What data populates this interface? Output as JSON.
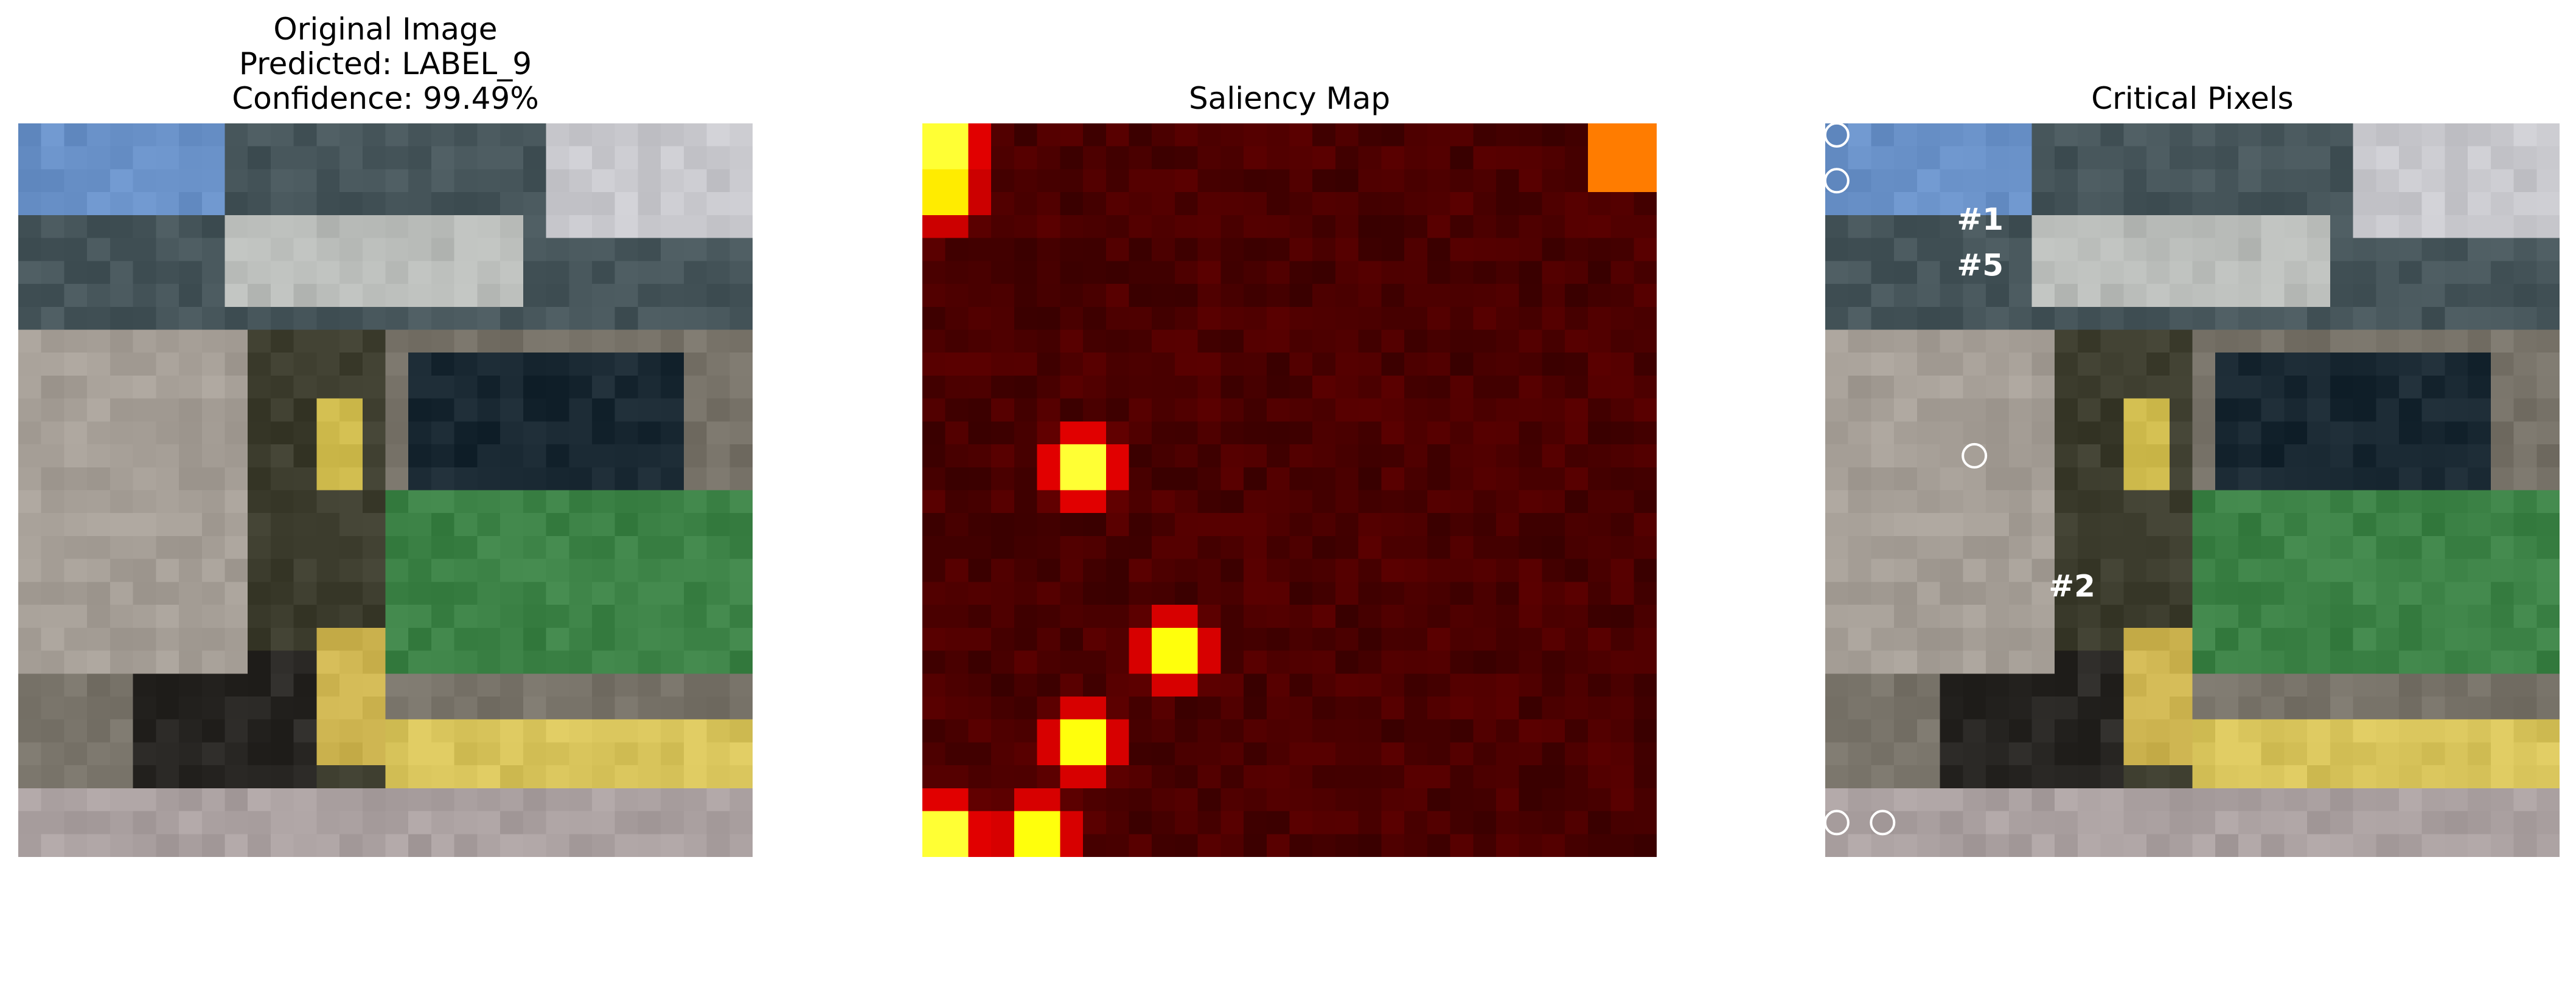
{
  "panels": [
    {
      "title_lines": [
        "Original Image",
        "Predicted: LABEL_9",
        "Confidence: 99.49%"
      ]
    },
    {
      "title_lines": [
        "Saliency Map"
      ],
      "colormap": "hot",
      "hotspots": [
        {
          "row": 0,
          "col": 0,
          "intensity": 1.0
        },
        {
          "row": 1,
          "col": 0,
          "intensity": 0.9
        },
        {
          "row": 7,
          "col": 3,
          "intensity": 1.0
        },
        {
          "row": 11,
          "col": 5,
          "intensity": 0.95
        },
        {
          "row": 13,
          "col": 3,
          "intensity": 0.95
        },
        {
          "row": 15,
          "col": 0,
          "intensity": 1.0
        },
        {
          "row": 15,
          "col": 2,
          "intensity": 0.95
        }
      ]
    },
    {
      "title_lines": [
        "Critical Pixels"
      ],
      "labels": [
        {
          "text": "#1",
          "row": 2,
          "col": 3
        },
        {
          "text": "#5",
          "row": 3,
          "col": 3
        },
        {
          "text": "#2",
          "row": 10,
          "col": 5
        }
      ],
      "markers": [
        {
          "row": 0,
          "col": 0
        },
        {
          "row": 1,
          "col": 0
        },
        {
          "row": 7,
          "col": 3
        },
        {
          "row": 15,
          "col": 0
        },
        {
          "row": 15,
          "col": 1
        }
      ]
    }
  ],
  "colors": {
    "marker_stroke": "#ffffff",
    "label_text": "#ffffff"
  }
}
